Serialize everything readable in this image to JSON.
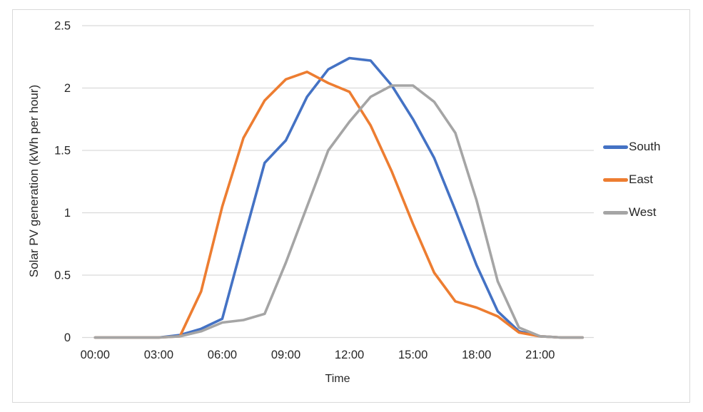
{
  "chart": {
    "y_axis_title": "Solar PV generation (kWh per hour)",
    "x_axis_title": "Time",
    "text_color": "#262626",
    "gridline_color": "#d9d9d9",
    "frame_border_color": "#d9d9d9",
    "background_color": "#ffffff"
  },
  "chart_data": {
    "type": "line",
    "title": "",
    "xlabel": "Time",
    "ylabel": "Solar PV generation (kWh per hour)",
    "x_unit": "hour of day",
    "x": [
      0,
      1,
      2,
      3,
      4,
      5,
      6,
      7,
      8,
      9,
      10,
      11,
      12,
      13,
      14,
      15,
      16,
      17,
      18,
      19,
      20,
      21,
      22,
      23
    ],
    "x_tick_hours": [
      0,
      3,
      6,
      9,
      12,
      15,
      18,
      21
    ],
    "x_tick_labels": [
      "00:00",
      "03:00",
      "06:00",
      "09:00",
      "12:00",
      "15:00",
      "18:00",
      "21:00"
    ],
    "y_ticks": [
      0,
      0.5,
      1,
      1.5,
      2,
      2.5
    ],
    "y_tick_labels": [
      "0",
      "0.5",
      "1",
      "1.5",
      "2",
      "2.5"
    ],
    "ylim": [
      0,
      2.5
    ],
    "grid": "horizontal",
    "legend_position": "right",
    "series": [
      {
        "name": "South",
        "color": "#4472C4",
        "values": [
          0,
          0,
          0,
          0,
          0.02,
          0.07,
          0.15,
          0.78,
          1.4,
          1.58,
          1.93,
          2.15,
          2.24,
          2.22,
          2.02,
          1.75,
          1.44,
          1.02,
          0.58,
          0.21,
          0.05,
          0.01,
          0,
          0
        ]
      },
      {
        "name": "East",
        "color": "#ED7D31",
        "values": [
          0,
          0,
          0,
          0,
          0.01,
          0.37,
          1.05,
          1.6,
          1.9,
          2.07,
          2.13,
          2.04,
          1.97,
          1.7,
          1.33,
          0.91,
          0.52,
          0.29,
          0.24,
          0.17,
          0.04,
          0.01,
          0,
          0
        ]
      },
      {
        "name": "West",
        "color": "#A5A5A5",
        "values": [
          0,
          0,
          0,
          0,
          0.01,
          0.05,
          0.12,
          0.14,
          0.19,
          0.6,
          1.05,
          1.5,
          1.73,
          1.93,
          2.02,
          2.02,
          1.89,
          1.64,
          1.1,
          0.45,
          0.08,
          0.01,
          0,
          0
        ]
      }
    ]
  }
}
